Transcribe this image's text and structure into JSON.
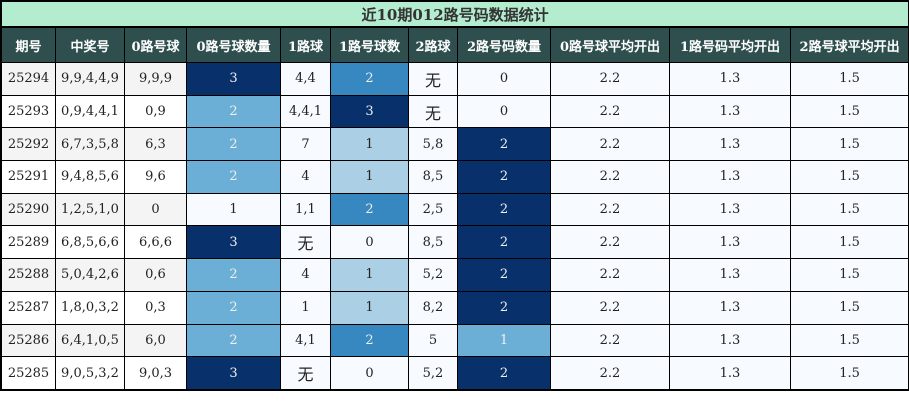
{
  "title": "近10期012路号码数据统计",
  "headers": [
    "期号",
    "中奖号",
    "0路号球",
    "0路号球数量",
    "1路球",
    "1路号球数",
    "2路球",
    "2路号码数量",
    "0路号球平均开出",
    "1路号码平均开出",
    "2路号球平均开出"
  ],
  "colors": {
    "header_bg": "#2f4f4f",
    "title_bg": "#b3ecce",
    "darkest": "#08306b",
    "mid": "#3787c0",
    "light_mid": "#6baed6",
    "light": "#abd0e6",
    "lightest": "#f7fbff"
  },
  "rows": [
    {
      "issue": "25294",
      "draw": "9,9,4,4,9",
      "r0": "9,9,9",
      "c0": "3",
      "c0_color": "#08306b",
      "r1": "4,4",
      "c1": "2",
      "c1_color": "#3787c0",
      "r2": "无",
      "c2": "0",
      "c2_color": "#f7fbff",
      "a0": "2.2",
      "a1": "1.3",
      "a2": "1.5"
    },
    {
      "issue": "25293",
      "draw": "0,9,4,4,1",
      "r0": "0,9",
      "c0": "2",
      "c0_color": "#6baed6",
      "r1": "4,4,1",
      "c1": "3",
      "c1_color": "#08306b",
      "r2": "无",
      "c2": "0",
      "c2_color": "#f7fbff",
      "a0": "2.2",
      "a1": "1.3",
      "a2": "1.5"
    },
    {
      "issue": "25292",
      "draw": "6,7,3,5,8",
      "r0": "6,3",
      "c0": "2",
      "c0_color": "#6baed6",
      "r1": "7",
      "c1": "1",
      "c1_color": "#abd0e6",
      "r2": "5,8",
      "c2": "2",
      "c2_color": "#08306b",
      "a0": "2.2",
      "a1": "1.3",
      "a2": "1.5"
    },
    {
      "issue": "25291",
      "draw": "9,4,8,5,6",
      "r0": "9,6",
      "c0": "2",
      "c0_color": "#6baed6",
      "r1": "4",
      "c1": "1",
      "c1_color": "#abd0e6",
      "r2": "8,5",
      "c2": "2",
      "c2_color": "#08306b",
      "a0": "2.2",
      "a1": "1.3",
      "a2": "1.5"
    },
    {
      "issue": "25290",
      "draw": "1,2,5,1,0",
      "r0": "0",
      "c0": "1",
      "c0_color": "#f7fbff",
      "r1": "1,1",
      "c1": "2",
      "c1_color": "#3787c0",
      "r2": "2,5",
      "c2": "2",
      "c2_color": "#08306b",
      "a0": "2.2",
      "a1": "1.3",
      "a2": "1.5"
    },
    {
      "issue": "25289",
      "draw": "6,8,5,6,6",
      "r0": "6,6,6",
      "c0": "3",
      "c0_color": "#08306b",
      "r1": "无",
      "c1": "0",
      "c1_color": "#f7fbff",
      "r2": "8,5",
      "c2": "2",
      "c2_color": "#08306b",
      "a0": "2.2",
      "a1": "1.3",
      "a2": "1.5"
    },
    {
      "issue": "25288",
      "draw": "5,0,4,2,6",
      "r0": "0,6",
      "c0": "2",
      "c0_color": "#6baed6",
      "r1": "4",
      "c1": "1",
      "c1_color": "#abd0e6",
      "r2": "5,2",
      "c2": "2",
      "c2_color": "#08306b",
      "a0": "2.2",
      "a1": "1.3",
      "a2": "1.5"
    },
    {
      "issue": "25287",
      "draw": "1,8,0,3,2",
      "r0": "0,3",
      "c0": "2",
      "c0_color": "#6baed6",
      "r1": "1",
      "c1": "1",
      "c1_color": "#abd0e6",
      "r2": "8,2",
      "c2": "2",
      "c2_color": "#08306b",
      "a0": "2.2",
      "a1": "1.3",
      "a2": "1.5"
    },
    {
      "issue": "25286",
      "draw": "6,4,1,0,5",
      "r0": "6,0",
      "c0": "2",
      "c0_color": "#6baed6",
      "r1": "4,1",
      "c1": "2",
      "c1_color": "#3787c0",
      "r2": "5",
      "c2": "1",
      "c2_color": "#6baed6",
      "a0": "2.2",
      "a1": "1.3",
      "a2": "1.5"
    },
    {
      "issue": "25285",
      "draw": "9,0,5,3,2",
      "r0": "9,0,3",
      "c0": "3",
      "c0_color": "#08306b",
      "r1": "无",
      "c1": "0",
      "c1_color": "#f7fbff",
      "r2": "5,2",
      "c2": "2",
      "c2_color": "#08306b",
      "a0": "2.2",
      "a1": "1.3",
      "a2": "1.5"
    }
  ]
}
